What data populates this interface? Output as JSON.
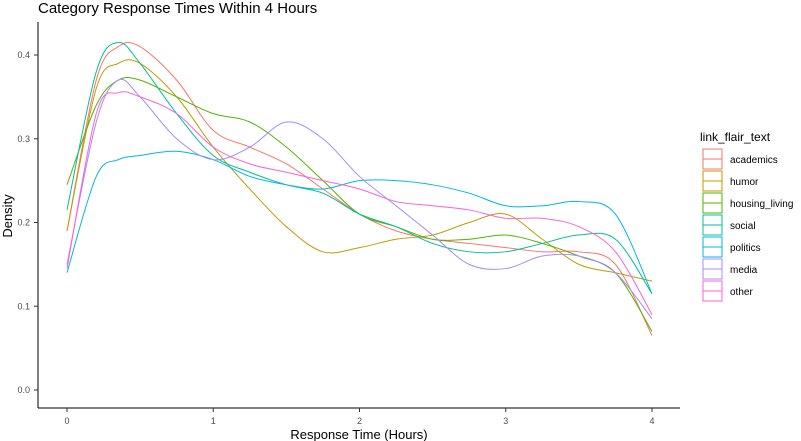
{
  "chart_data": {
    "type": "line",
    "title": "Category Response Times Within 4 Hours",
    "xlabel": "Response Time (Hours)",
    "ylabel": "Density",
    "xlim": [
      0,
      4
    ],
    "ylim": [
      0,
      0.44
    ],
    "x_ticks": [
      "0",
      "1",
      "2",
      "3",
      "4"
    ],
    "y_ticks": [
      "0.0",
      "0.1",
      "0.2",
      "0.3",
      "0.4"
    ],
    "grid": false,
    "legend": {
      "title": "link_flair_text",
      "position": "right"
    },
    "x": [
      0,
      0.2,
      0.35,
      0.5,
      0.75,
      1,
      1.25,
      1.5,
      1.75,
      2,
      2.25,
      2.5,
      2.75,
      3,
      3.25,
      3.5,
      3.75,
      4
    ],
    "series": [
      {
        "name": "academics",
        "color": "#F8766D",
        "values": [
          0.19,
          0.37,
          0.41,
          0.41,
          0.37,
          0.31,
          0.29,
          0.27,
          0.24,
          0.21,
          0.19,
          0.18,
          0.175,
          0.17,
          0.165,
          0.165,
          0.15,
          0.065
        ]
      },
      {
        "name": "humor",
        "color": "#C49A00",
        "values": [
          0.19,
          0.36,
          0.39,
          0.39,
          0.35,
          0.29,
          0.24,
          0.195,
          0.165,
          0.17,
          0.18,
          0.185,
          0.2,
          0.21,
          0.18,
          0.15,
          0.14,
          0.13
        ]
      },
      {
        "name": "housing_living",
        "color": "#53B400",
        "values": [
          0.245,
          0.34,
          0.37,
          0.37,
          0.35,
          0.33,
          0.32,
          0.29,
          0.25,
          0.21,
          0.195,
          0.18,
          0.18,
          0.185,
          0.175,
          0.16,
          0.14,
          0.07
        ]
      },
      {
        "name": "social",
        "color": "#00C094",
        "values": [
          0.215,
          0.38,
          0.415,
          0.39,
          0.33,
          0.28,
          0.26,
          0.245,
          0.235,
          0.21,
          0.195,
          0.175,
          0.165,
          0.165,
          0.175,
          0.185,
          0.18,
          0.115
        ]
      },
      {
        "name": "politics",
        "color": "#00B6EB",
        "values": [
          0.14,
          0.255,
          0.275,
          0.28,
          0.285,
          0.275,
          0.255,
          0.245,
          0.24,
          0.25,
          0.25,
          0.245,
          0.235,
          0.22,
          0.22,
          0.225,
          0.21,
          0.115
        ]
      },
      {
        "name": "media",
        "color": "#A58AFF",
        "values": [
          0.15,
          0.32,
          0.37,
          0.35,
          0.3,
          0.275,
          0.29,
          0.32,
          0.3,
          0.255,
          0.22,
          0.185,
          0.15,
          0.145,
          0.16,
          0.16,
          0.14,
          0.085
        ]
      },
      {
        "name": "other",
        "color": "#FB61D7",
        "values": [
          0.145,
          0.33,
          0.355,
          0.35,
          0.33,
          0.29,
          0.27,
          0.26,
          0.25,
          0.24,
          0.225,
          0.22,
          0.215,
          0.205,
          0.205,
          0.195,
          0.165,
          0.09
        ]
      }
    ]
  }
}
